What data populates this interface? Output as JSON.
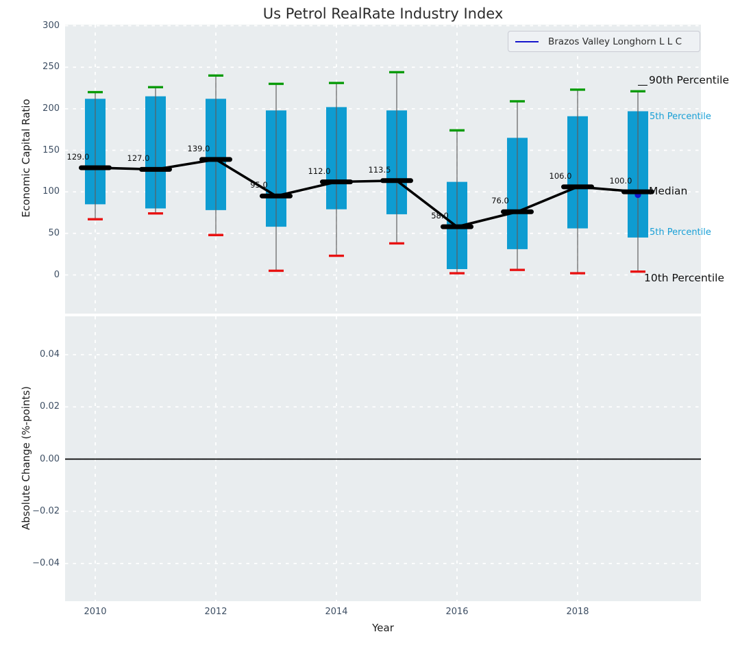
{
  "title": "Us Petrol RealRate Industry Index",
  "legend": {
    "label": "Brazos Valley Longhorn L L C"
  },
  "colors": {
    "bar": "#0e9cd1",
    "p90_cap": "#089b08",
    "p10_cap": "#e81212",
    "whisker": "#5e5e5e",
    "median": "#000000",
    "company": "#1414cc",
    "annotation_blue": "#189fd6",
    "panel_bg": "#e9edef",
    "grid": "#ffffff",
    "tick_text": "#3d4e63"
  },
  "annotations": {
    "p90": "90th Percentile",
    "p75_visible": "5th Percentile",
    "median": "Median",
    "p25_visible": "5th Percentile",
    "p10": "10th Percentile"
  },
  "axes": {
    "top": {
      "ylabel": "Economic Capital Ratio",
      "ylim": [
        -45,
        305
      ],
      "yticks": [
        {
          "v": 300,
          "label": "300"
        },
        {
          "v": 250,
          "label": "250"
        },
        {
          "v": 200,
          "label": "200"
        },
        {
          "v": 150,
          "label": "150"
        },
        {
          "v": 100,
          "label": "100"
        },
        {
          "v": 50,
          "label": "50"
        },
        {
          "v": 0,
          "label": "0"
        }
      ]
    },
    "bottom": {
      "ylabel": "Absolute Change (%-points)",
      "ylim": [
        -0.055,
        0.055
      ],
      "yticks": [
        {
          "v": 0.04,
          "label": "0.04"
        },
        {
          "v": 0.02,
          "label": "0.02"
        },
        {
          "v": 0,
          "label": "0.00"
        },
        {
          "v": -0.02,
          "label": "−0.02"
        },
        {
          "v": -0.04,
          "label": "−0.04"
        }
      ],
      "zero_line": true
    },
    "x": {
      "label": "Year",
      "ticks": [
        {
          "v": 2010,
          "label": "2010"
        },
        {
          "v": 2012,
          "label": "2012"
        },
        {
          "v": 2014,
          "label": "2014"
        },
        {
          "v": 2016,
          "label": "2016"
        },
        {
          "v": 2018,
          "label": "2018"
        }
      ]
    }
  },
  "chart_data": {
    "type": "boxplot+line",
    "title": "Us Petrol RealRate Industry Index",
    "xlabel": "Year",
    "ylabel_top": "Economic Capital Ratio",
    "ylabel_bottom": "Absolute Change (%-points)",
    "years": [
      2010,
      2011,
      2012,
      2013,
      2014,
      2015,
      2016,
      2017,
      2018,
      2019
    ],
    "series": [
      {
        "name": "10th Percentile",
        "values": [
          67,
          74,
          48,
          5,
          23,
          38,
          2,
          6,
          2,
          4
        ]
      },
      {
        "name": "25th Percentile",
        "values": [
          85,
          80,
          78,
          58,
          79,
          73,
          7,
          31,
          56,
          45
        ]
      },
      {
        "name": "Median",
        "values": [
          129,
          127,
          139,
          95,
          112,
          113.5,
          58,
          76,
          106,
          100
        ]
      },
      {
        "name": "75th Percentile",
        "values": [
          212,
          215,
          212,
          198,
          202,
          198,
          112,
          165,
          191,
          197
        ]
      },
      {
        "name": "90th Percentile",
        "values": [
          220,
          226,
          240,
          230,
          231,
          244,
          174,
          209,
          223,
          221
        ]
      }
    ],
    "median_labels": [
      "129.0",
      "127.0",
      "139.0",
      "95.0",
      "112.0",
      "113.5",
      "58.0",
      "76.0",
      "106.0",
      "100.0"
    ],
    "company_point": {
      "name": "Brazos Valley Longhorn L L C",
      "year": 2019,
      "value": 100
    },
    "legend_position": "upper right",
    "grid": "white dashed"
  }
}
